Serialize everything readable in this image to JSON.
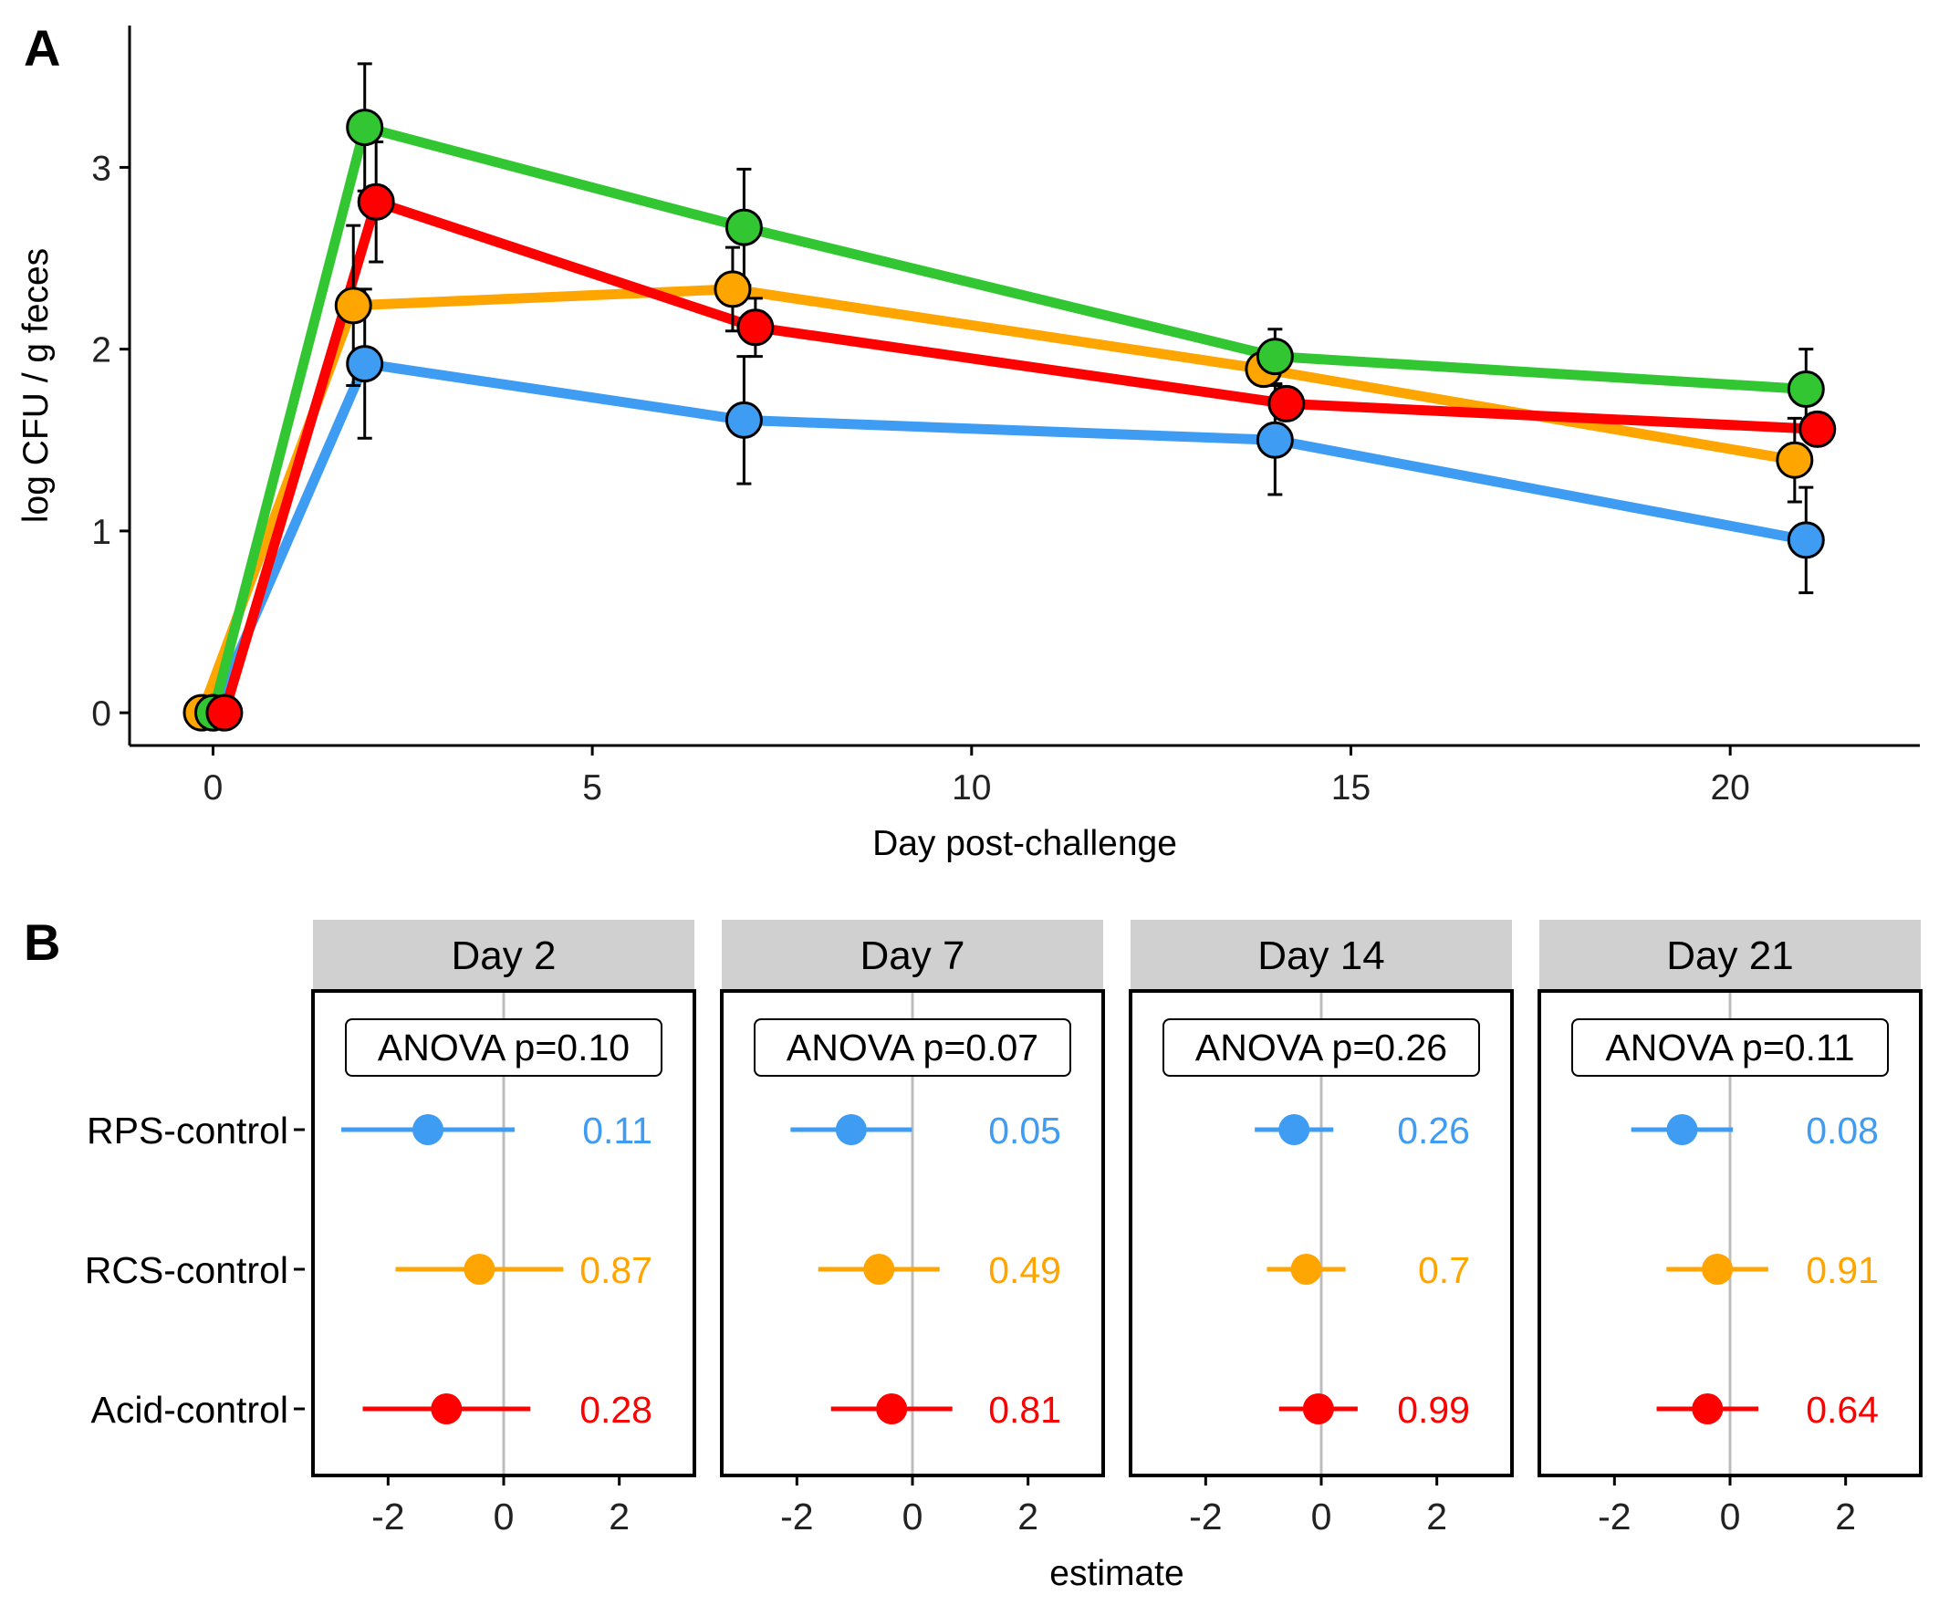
{
  "panel_a_letter": "A",
  "panel_b_letter": "B",
  "colors": {
    "control": "#3f9cf3",
    "RCS": "#ffa500",
    "RPS": "#33c633",
    "Acid": "#ff0000"
  },
  "chart_data": [
    {
      "type": "line",
      "panel": "A",
      "title": "",
      "xlabel": "Day post-challenge",
      "ylabel": "log CFU / g feces",
      "xlim": [
        -1.1,
        22.5
      ],
      "ylim": [
        -0.18,
        3.78
      ],
      "xticks": [
        0,
        5,
        10,
        15,
        20
      ],
      "yticks": [
        0,
        1,
        2,
        3
      ],
      "error_bars": true,
      "series": [
        {
          "name": "control",
          "color": "#3f9cf3",
          "x": [
            0,
            2,
            7,
            14,
            21
          ],
          "offset": [
            0.0,
            0.0,
            0.0,
            0.0,
            0.0
          ],
          "y": [
            0,
            1.92,
            1.61,
            1.5,
            0.95
          ],
          "err": [
            0,
            0.41,
            0.35,
            0.3,
            0.29
          ]
        },
        {
          "name": "RCS",
          "color": "#ffa500",
          "x": [
            0,
            2,
            7,
            14,
            21
          ],
          "offset": [
            -0.15,
            -0.15,
            -0.15,
            -0.15,
            -0.15
          ],
          "y": [
            0,
            2.24,
            2.33,
            1.89,
            1.39
          ],
          "err": [
            0,
            0.44,
            0.23,
            0.0,
            0.23
          ]
        },
        {
          "name": "RPS",
          "color": "#33c633",
          "x": [
            0,
            2,
            7,
            14,
            21
          ],
          "offset": [
            0.0,
            0.0,
            0.0,
            0.0,
            0.0
          ],
          "y": [
            0,
            3.22,
            2.67,
            1.96,
            1.78
          ],
          "err": [
            0,
            0.35,
            0.32,
            0.15,
            0.22
          ]
        },
        {
          "name": "Acid",
          "color": "#ff0000",
          "x": [
            0,
            2,
            7,
            14,
            21
          ],
          "offset": [
            0.15,
            0.15,
            0.15,
            0.15,
            0.15
          ],
          "y": [
            0,
            2.81,
            2.12,
            1.7,
            1.56
          ],
          "err": [
            0,
            0.33,
            0.16,
            0.0,
            0.0
          ]
        }
      ]
    },
    {
      "type": "scatter",
      "panel": "B",
      "subtype": "forest",
      "xlabel": "estimate",
      "xlim": [
        -3.3,
        3.3
      ],
      "xticks": [
        -2,
        0,
        2
      ],
      "xtick_labels": [
        "-2",
        "0",
        "2"
      ],
      "comparisons": [
        "RPS-control",
        "RCS-control",
        "Acid-control"
      ],
      "comparison_colors": [
        "#3f9cf3",
        "#ffa500",
        "#ff0000"
      ],
      "facets": [
        {
          "label": "Day 2",
          "anova_text": "ANOVA p=0.10",
          "estimates": [
            -1.31,
            -0.42,
            -0.99
          ],
          "lower": [
            -2.81,
            -1.87,
            -2.44
          ],
          "upper": [
            0.19,
            1.03,
            0.46
          ],
          "pvalue_labels": [
            "0.11",
            "0.87",
            "0.28"
          ]
        },
        {
          "label": "Day 7",
          "anova_text": "ANOVA p=0.07",
          "estimates": [
            -1.06,
            -0.58,
            -0.36
          ],
          "lower": [
            -2.11,
            -1.63,
            -1.41
          ],
          "upper": [
            -0.01,
            0.47,
            0.69
          ],
          "pvalue_labels": [
            "0.05",
            "0.49",
            "0.81"
          ]
        },
        {
          "label": "Day 14",
          "anova_text": "ANOVA p=0.26",
          "estimates": [
            -0.47,
            -0.26,
            -0.05
          ],
          "lower": [
            -1.15,
            -0.94,
            -0.73
          ],
          "upper": [
            0.21,
            0.42,
            0.63
          ],
          "pvalue_labels": [
            "0.26",
            "0.7",
            "0.99"
          ]
        },
        {
          "label": "Day 21",
          "anova_text": "ANOVA p=0.11",
          "estimates": [
            -0.83,
            -0.22,
            -0.39
          ],
          "lower": [
            -1.71,
            -1.1,
            -1.27
          ],
          "upper": [
            0.05,
            0.66,
            0.49
          ],
          "pvalue_labels": [
            "0.08",
            "0.91",
            "0.64"
          ]
        }
      ]
    }
  ]
}
